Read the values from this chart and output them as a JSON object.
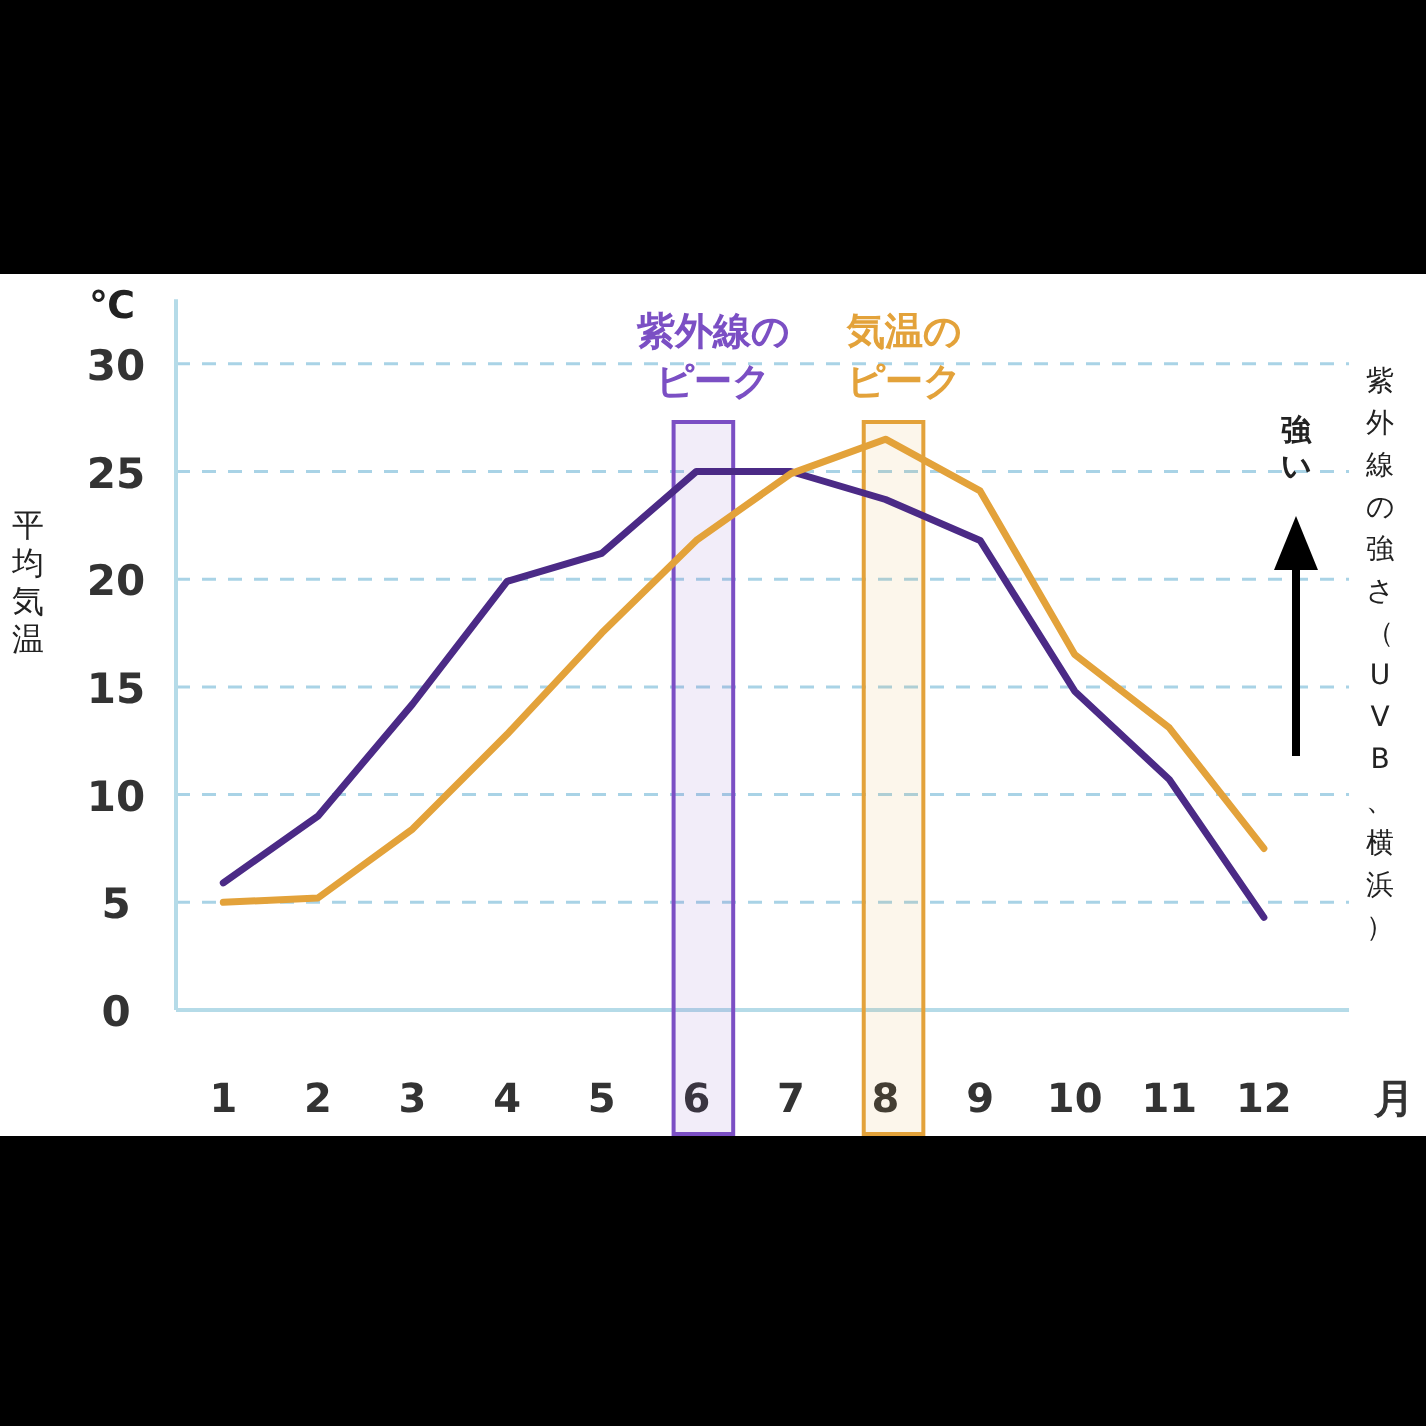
{
  "chart_data": {
    "type": "line",
    "ylabel": "平均気温",
    "xlabel": "月",
    "y2label": "紫外線の強さ（UVB、横浜）",
    "annotations": [
      "℃",
      "強い"
    ],
    "x": [
      1,
      2,
      3,
      4,
      5,
      6,
      7,
      8,
      9,
      10,
      11,
      12
    ],
    "xlim": [
      0.5,
      12.9
    ],
    "xticks": [
      1,
      2,
      3,
      4,
      5,
      6,
      7,
      8,
      9,
      10,
      11,
      12
    ],
    "ylim": [
      0,
      33
    ],
    "yticks": [
      0,
      5,
      10,
      15,
      20,
      25,
      30
    ],
    "grid": "y",
    "marker": "none",
    "line_style": "solid",
    "series": [
      {
        "color": "#4b2a86",
        "values": [
          5.9,
          9,
          14.2,
          19.9,
          21.2,
          25,
          25,
          23.7,
          21.8,
          14.8,
          10.7,
          4.3
        ]
      },
      {
        "color": "#e3a23a",
        "values": [
          5.0,
          5.2,
          8.4,
          12.8,
          17.5,
          21.8,
          24.9,
          26.5,
          24.1,
          16.5,
          13.1,
          7.5
        ]
      }
    ],
    "bands": [
      {
        "axis": "x",
        "from": 5.76,
        "to": 6.39,
        "label": "紫外線のピーク",
        "color": "#7b4fc4"
      },
      {
        "axis": "x",
        "from": 7.77,
        "to": 8.4,
        "label": "気温のピーク",
        "color": "#e3a23a"
      }
    ]
  }
}
